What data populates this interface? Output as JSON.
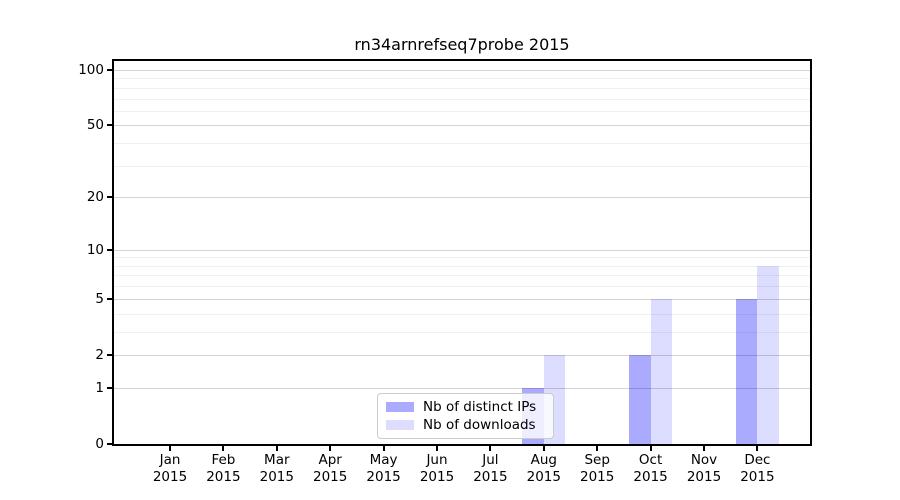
{
  "chart_data": {
    "type": "bar",
    "title": "rn34arnrefseq7probe 2015",
    "categories": [
      "Jan",
      "Feb",
      "Mar",
      "Apr",
      "May",
      "Jun",
      "Jul",
      "Aug",
      "Sep",
      "Oct",
      "Nov",
      "Dec"
    ],
    "x_year": "2015",
    "series": [
      {
        "name": "Nb of distinct IPs",
        "color": "#aaaaff",
        "values": [
          0,
          0,
          0,
          0,
          0,
          0,
          0,
          1,
          0,
          2,
          0,
          5
        ]
      },
      {
        "name": "Nb of downloads",
        "color": "#ddddff",
        "values": [
          0,
          0,
          0,
          0,
          0,
          0,
          0,
          2,
          0,
          5,
          0,
          8
        ]
      }
    ],
    "y_axis": {
      "scale": "log1p",
      "ticks": [
        0,
        1,
        2,
        5,
        10,
        20,
        50,
        100
      ],
      "minor_gridlines": [
        3,
        4,
        6,
        7,
        8,
        9,
        30,
        40,
        60,
        70,
        80,
        90
      ],
      "ylim": [
        0,
        100
      ]
    },
    "grid": true,
    "legend_position": "lower-center"
  }
}
